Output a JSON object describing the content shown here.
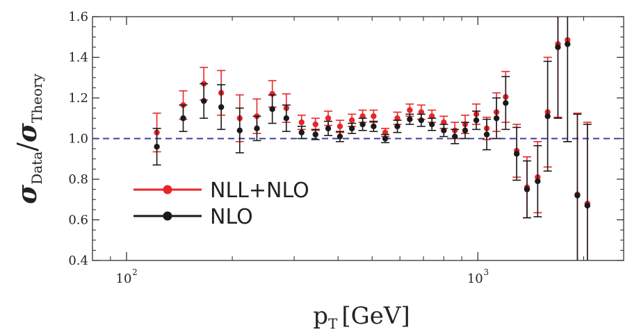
{
  "chart_data": {
    "type": "scatter",
    "x_scale": "log",
    "xlim": [
      80,
      2600
    ],
    "ylim": [
      0.4,
      1.6
    ],
    "x_ticks_major": [
      {
        "value": 100,
        "base": "10",
        "exp": "2"
      },
      {
        "value": 1000,
        "base": "10",
        "exp": "3"
      }
    ],
    "y_ticks": [
      {
        "value": 0.4,
        "label": "0.4"
      },
      {
        "value": 0.6,
        "label": "0.6"
      },
      {
        "value": 0.8,
        "label": "0.8"
      },
      {
        "value": 1.0,
        "label": "1.0"
      },
      {
        "value": 1.2,
        "label": "1.2"
      },
      {
        "value": 1.4,
        "label": "1.4"
      },
      {
        "value": 1.6,
        "label": "1.6"
      }
    ],
    "xlabel": {
      "main": "p",
      "sub": "T",
      "unit": "[GeV]"
    },
    "ylabel": {
      "num": "σ",
      "num_sub": "Data",
      "slash": "/",
      "den": "σ",
      "den_sub": "Theory"
    },
    "reference_line": {
      "y": 1.0,
      "color": "#3a3f9a",
      "style": "dashed"
    },
    "legend": {
      "position": "lower-left"
    },
    "series": [
      {
        "name": "NLL+NLO",
        "color": "#e8262a",
        "points": [
          {
            "x": 122,
            "y": 1.03,
            "yerr": 0.095
          },
          {
            "x": 145,
            "y": 1.165,
            "yerr": 0.07
          },
          {
            "x": 166,
            "y": 1.27,
            "yerr": 0.08
          },
          {
            "x": 186,
            "y": 1.225,
            "yerr": 0.11
          },
          {
            "x": 210,
            "y": 1.1,
            "yerr": 0.115
          },
          {
            "x": 235,
            "y": 1.11,
            "yerr": 0.085
          },
          {
            "x": 260,
            "y": 1.22,
            "yerr": 0.065
          },
          {
            "x": 285,
            "y": 1.15,
            "yerr": 0.07
          },
          {
            "x": 315,
            "y": 1.08,
            "yerr": 0.035
          },
          {
            "x": 345,
            "y": 1.07,
            "yerr": 0.03
          },
          {
            "x": 375,
            "y": 1.1,
            "yerr": 0.035
          },
          {
            "x": 405,
            "y": 1.06,
            "yerr": 0.03
          },
          {
            "x": 438,
            "y": 1.09,
            "yerr": 0.03
          },
          {
            "x": 470,
            "y": 1.11,
            "yerr": 0.03
          },
          {
            "x": 505,
            "y": 1.11,
            "yerr": 0.03
          },
          {
            "x": 545,
            "y": 1.03,
            "yerr": 0.02
          },
          {
            "x": 590,
            "y": 1.1,
            "yerr": 0.03
          },
          {
            "x": 640,
            "y": 1.14,
            "yerr": 0.03
          },
          {
            "x": 690,
            "y": 1.13,
            "yerr": 0.035
          },
          {
            "x": 740,
            "y": 1.11,
            "yerr": 0.03
          },
          {
            "x": 800,
            "y": 1.08,
            "yerr": 0.03
          },
          {
            "x": 860,
            "y": 1.04,
            "yerr": 0.04
          },
          {
            "x": 920,
            "y": 1.07,
            "yerr": 0.045
          },
          {
            "x": 990,
            "y": 1.12,
            "yerr": 0.05
          },
          {
            "x": 1060,
            "y": 1.05,
            "yerr": 0.055
          },
          {
            "x": 1130,
            "y": 1.13,
            "yerr": 0.095
          },
          {
            "x": 1200,
            "y": 1.205,
            "yerr": 0.125
          },
          {
            "x": 1290,
            "y": 0.94,
            "yerr": 0.13
          },
          {
            "x": 1380,
            "y": 0.76,
            "yerr": 0.15
          },
          {
            "x": 1480,
            "y": 0.81,
            "yerr": 0.175
          },
          {
            "x": 1580,
            "y": 1.13,
            "yerr": 0.27
          },
          {
            "x": 1690,
            "y": 1.465,
            "yerr": 0.36
          },
          {
            "x": 1800,
            "y": 1.485,
            "yerr": 0.5
          },
          {
            "x": 1920,
            "y": 0.725,
            "yerr": 0.4
          },
          {
            "x": 2050,
            "y": 0.68,
            "yerr": 0.4
          }
        ]
      },
      {
        "name": "NLO",
        "color": "#1a1a1a",
        "points": [
          {
            "x": 122,
            "y": 0.96,
            "yerr": 0.09
          },
          {
            "x": 145,
            "y": 1.1,
            "yerr": 0.065
          },
          {
            "x": 166,
            "y": 1.185,
            "yerr": 0.085
          },
          {
            "x": 186,
            "y": 1.155,
            "yerr": 0.11
          },
          {
            "x": 210,
            "y": 1.04,
            "yerr": 0.11
          },
          {
            "x": 235,
            "y": 1.05,
            "yerr": 0.06
          },
          {
            "x": 260,
            "y": 1.145,
            "yerr": 0.07
          },
          {
            "x": 285,
            "y": 1.1,
            "yerr": 0.065
          },
          {
            "x": 315,
            "y": 1.03,
            "yerr": 0.03
          },
          {
            "x": 345,
            "y": 1.02,
            "yerr": 0.025
          },
          {
            "x": 375,
            "y": 1.05,
            "yerr": 0.035
          },
          {
            "x": 405,
            "y": 1.01,
            "yerr": 0.025
          },
          {
            "x": 438,
            "y": 1.05,
            "yerr": 0.025
          },
          {
            "x": 470,
            "y": 1.07,
            "yerr": 0.03
          },
          {
            "x": 505,
            "y": 1.06,
            "yerr": 0.025
          },
          {
            "x": 545,
            "y": 1.0,
            "yerr": 0.02
          },
          {
            "x": 590,
            "y": 1.06,
            "yerr": 0.03
          },
          {
            "x": 640,
            "y": 1.095,
            "yerr": 0.025
          },
          {
            "x": 690,
            "y": 1.09,
            "yerr": 0.03
          },
          {
            "x": 740,
            "y": 1.07,
            "yerr": 0.03
          },
          {
            "x": 800,
            "y": 1.04,
            "yerr": 0.03
          },
          {
            "x": 860,
            "y": 1.01,
            "yerr": 0.035
          },
          {
            "x": 920,
            "y": 1.04,
            "yerr": 0.04
          },
          {
            "x": 990,
            "y": 1.09,
            "yerr": 0.045
          },
          {
            "x": 1060,
            "y": 1.02,
            "yerr": 0.075
          },
          {
            "x": 1130,
            "y": 1.1,
            "yerr": 0.1
          },
          {
            "x": 1200,
            "y": 1.175,
            "yerr": 0.13
          },
          {
            "x": 1290,
            "y": 0.925,
            "yerr": 0.13
          },
          {
            "x": 1380,
            "y": 0.75,
            "yerr": 0.14
          },
          {
            "x": 1480,
            "y": 0.79,
            "yerr": 0.175
          },
          {
            "x": 1580,
            "y": 1.11,
            "yerr": 0.27
          },
          {
            "x": 1690,
            "y": 1.45,
            "yerr": 0.35
          },
          {
            "x": 1800,
            "y": 1.465,
            "yerr": 0.48
          },
          {
            "x": 1920,
            "y": 0.72,
            "yerr": 0.4
          },
          {
            "x": 2050,
            "y": 0.67,
            "yerr": 0.4
          }
        ]
      }
    ]
  }
}
